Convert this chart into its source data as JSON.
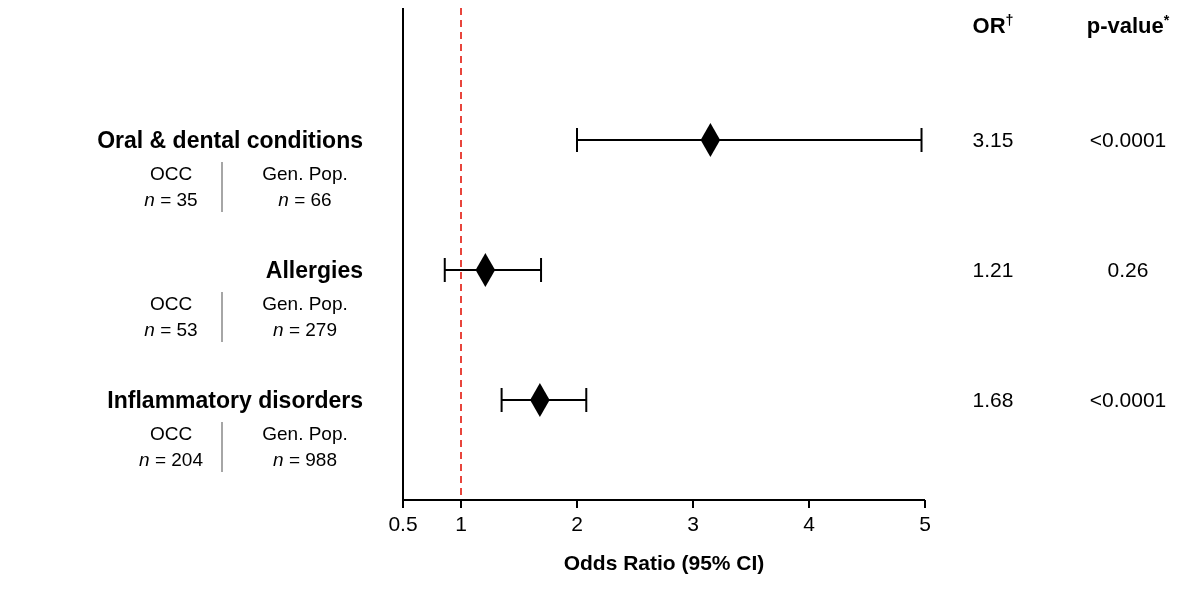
{
  "chart_data": {
    "type": "scatter",
    "orientation": "horizontal",
    "xlabel": "Odds Ratio (95% CI)",
    "categories": [
      "Oral & dental conditions",
      "Allergies",
      "Inflammatory disorders"
    ],
    "values": [
      3.15,
      1.21,
      1.68
    ],
    "errors": [
      [
        2.0,
        4.97
      ],
      [
        0.86,
        1.69
      ],
      [
        1.35,
        2.08
      ]
    ],
    "value_labels": [
      "3.15",
      "1.21",
      "1.68"
    ],
    "color": "#000000",
    "marker": "diamond",
    "xlim": [
      0.5,
      5
    ],
    "xticks": [
      0.5,
      1,
      2,
      3,
      4,
      5
    ],
    "ref_lines": [
      {
        "axis": "x",
        "value": 1,
        "color": "#e8453c",
        "line_style": "dashed"
      }
    ],
    "annotations": [
      "OR$^{†}$",
      "p-value$^{*}$",
      "<0.0001",
      "0.26",
      "<0.0001",
      "OCC",
      "n = 35",
      "Gen. Pop.",
      "n = 66",
      "OCC",
      "n = 53",
      "Gen. Pop.",
      "n = 279",
      "OCC",
      "n = 204",
      "Gen. Pop.",
      "n = 988"
    ]
  }
}
